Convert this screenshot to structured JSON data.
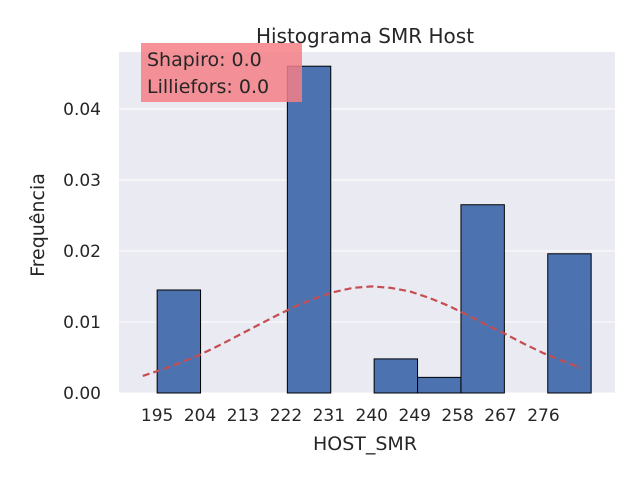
{
  "chart_data": {
    "type": "bar",
    "title": "Histograma SMR Host",
    "xlabel": "HOST_SMR",
    "ylabel": "Frequência",
    "xlim": [
      187,
      291
    ],
    "ylim": [
      0,
      0.048
    ],
    "grid": true,
    "bin_width": 9.1,
    "x_ticks": [
      195,
      204,
      213,
      222,
      231,
      240,
      249,
      258,
      267,
      276
    ],
    "y_ticks": [
      "0.00",
      "0.01",
      "0.02",
      "0.03",
      "0.04"
    ],
    "bars": [
      {
        "x_start": 195.0,
        "value": 0.0145
      },
      {
        "x_start": 222.3,
        "value": 0.046
      },
      {
        "x_start": 240.5,
        "value": 0.0048
      },
      {
        "x_start": 249.6,
        "value": 0.0022
      },
      {
        "x_start": 258.7,
        "value": 0.0265
      },
      {
        "x_start": 276.9,
        "value": 0.0196
      }
    ],
    "curve": {
      "style": "dashed",
      "points": [
        [
          192,
          0.0024
        ],
        [
          196,
          0.0033
        ],
        [
          200,
          0.0043
        ],
        [
          204,
          0.0054
        ],
        [
          208,
          0.0067
        ],
        [
          212,
          0.0081
        ],
        [
          216,
          0.0095
        ],
        [
          220,
          0.0109
        ],
        [
          224,
          0.0122
        ],
        [
          228,
          0.0133
        ],
        [
          232,
          0.0142
        ],
        [
          236,
          0.0148
        ],
        [
          240,
          0.015
        ],
        [
          244,
          0.0148
        ],
        [
          248,
          0.0143
        ],
        [
          252,
          0.0134
        ],
        [
          256,
          0.0123
        ],
        [
          260,
          0.011
        ],
        [
          264,
          0.0096
        ],
        [
          268,
          0.0083
        ],
        [
          272,
          0.0069
        ],
        [
          276,
          0.0056
        ],
        [
          280,
          0.0045
        ],
        [
          284,
          0.0035
        ]
      ]
    },
    "annotation": {
      "lines": [
        "Shapiro: 0.0",
        "Lilliefors: 0.0"
      ],
      "placement": "top-left"
    },
    "colors": {
      "bar": "#4c72b0",
      "bar_edge": "#000000",
      "curve": "#c44e52",
      "plot_bg": "#eaeaf2",
      "grid": "#ffffff",
      "annotation_bg": "#f47f86"
    }
  }
}
